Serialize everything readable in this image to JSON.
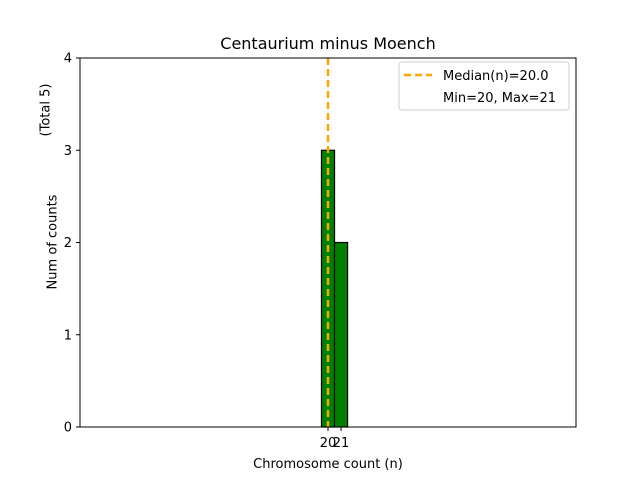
{
  "chart_data": {
    "type": "bar",
    "title": "Centaurium minus Moench",
    "xlabel": "Chromosome count (n)",
    "ylabel": "Num of counts",
    "ylabel_note": "(Total 5)",
    "xlim": [
      1.0,
      39.0
    ],
    "ylim": [
      0,
      4
    ],
    "yticks": [
      0,
      1,
      2,
      3,
      4
    ],
    "xticks": [
      20,
      21
    ],
    "bars": [
      {
        "x": 20,
        "value": 3
      },
      {
        "x": 21,
        "value": 2
      }
    ],
    "bar_width": 1,
    "bar_color": "#008000",
    "bar_edge_color": "#000000",
    "baseline_range": [
      19,
      23.5
    ],
    "median": 20.0,
    "median_color": "#FFA500",
    "legend": {
      "placement": "top-right",
      "entries": [
        "Median(n)=20.0",
        "Min=20, Max=21"
      ]
    }
  }
}
